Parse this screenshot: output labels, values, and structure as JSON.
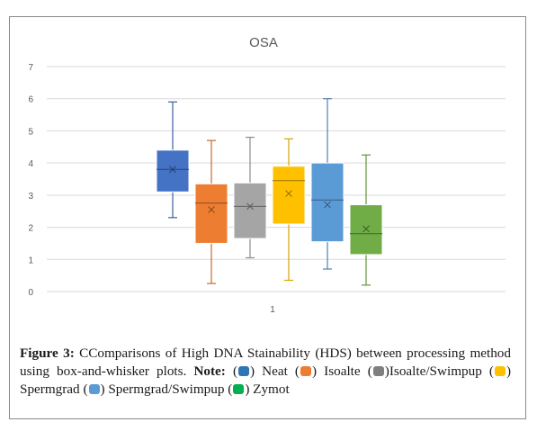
{
  "chart_data": {
    "type": "box",
    "title": "OSA",
    "categories": [
      "1"
    ],
    "ylim": [
      0,
      7
    ],
    "yticks": [
      "0",
      "1",
      "2",
      "3",
      "4",
      "5",
      "6",
      "7"
    ],
    "grid": true,
    "series": [
      {
        "name": "Neat",
        "color": "#4472c4",
        "min": 2.3,
        "q1": 3.1,
        "median": 3.8,
        "q3": 4.4,
        "max": 5.9,
        "mean": 3.8
      },
      {
        "name": "Isoalte",
        "color": "#ed7d31",
        "min": 0.25,
        "q1": 1.5,
        "median": 2.75,
        "q3": 3.35,
        "max": 4.7,
        "mean": 2.55
      },
      {
        "name": "Isoalte/Swimpup",
        "color": "#a5a5a5",
        "min": 1.05,
        "q1": 1.65,
        "median": 2.65,
        "q3": 3.38,
        "max": 4.8,
        "mean": 2.65
      },
      {
        "name": "Spermgrad",
        "color": "#ffc000",
        "min": 0.35,
        "q1": 2.1,
        "median": 3.45,
        "q3": 3.9,
        "max": 4.75,
        "mean": 3.05
      },
      {
        "name": "Spermgrad/Swimpup",
        "color": "#5b9bd5",
        "min": 0.7,
        "q1": 1.55,
        "median": 2.85,
        "q3": 4.0,
        "max": 6.0,
        "mean": 2.7
      },
      {
        "name": "Zymot",
        "color": "#70ad47",
        "min": 0.2,
        "q1": 1.15,
        "median": 1.8,
        "q3": 2.7,
        "max": 4.25,
        "mean": 1.95
      }
    ]
  },
  "caption": {
    "figure_label": "Figure 3:",
    "text": "CComparisons of High DNA Stainability (HDS) between processing method using box-and-whisker plots.",
    "note_label": "Note:",
    "legend": [
      {
        "swatch_color": "#2e75b6",
        "prefix": "",
        "label": "Neat"
      },
      {
        "swatch_color": "#ed7d31",
        "prefix": "",
        "label": "Isoalte"
      },
      {
        "swatch_color": "#7f7f7f",
        "prefix": "",
        "label": "Isoalte/Swimpup"
      },
      {
        "swatch_color": "#ffc000",
        "prefix": "",
        "label": "Spermgrad"
      },
      {
        "swatch_color": "#5b9bd5",
        "prefix": "",
        "label": "Spermgrad/Swimpup"
      },
      {
        "swatch_color": "#00b050",
        "prefix": "",
        "label": "Zymot"
      }
    ]
  }
}
